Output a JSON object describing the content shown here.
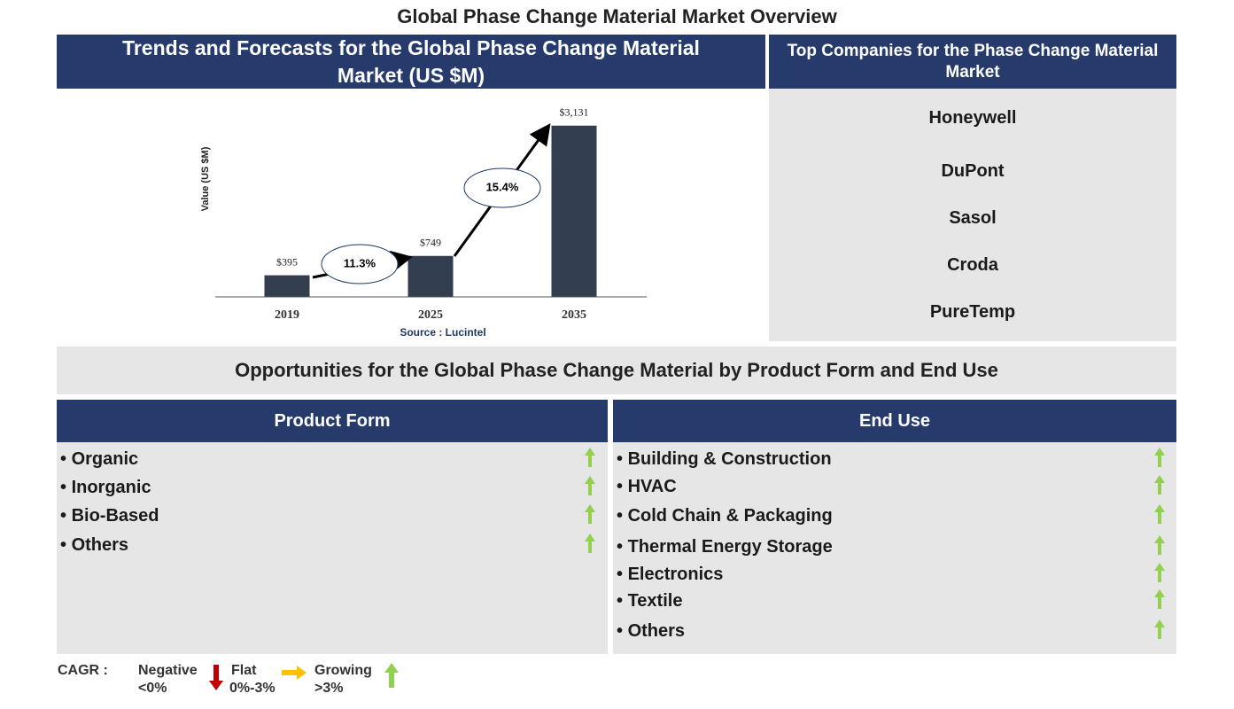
{
  "title": "Global Phase Change Material Market Overview",
  "chart_panel": {
    "title": "Trends and Forecasts for the Global Phase Change Material Market (US $M)",
    "source": "Source : Lucintel"
  },
  "chart_data": {
    "type": "bar",
    "y_label": "Value (US $M)",
    "categories": [
      "2019",
      "2025",
      "2035"
    ],
    "values": [
      395,
      749,
      3131
    ],
    "value_labels": [
      "$395",
      "$749",
      "$3,131"
    ],
    "color": "#323d4f",
    "ylim": [
      0,
      3500
    ],
    "cagr_labels": [
      "11.3%",
      "15.4%"
    ]
  },
  "companies": {
    "title": "Top Companies for the Phase Change Material Market",
    "items": [
      "Honeywell",
      "DuPont",
      "Sasol",
      "Croda",
      "PureTemp"
    ]
  },
  "opportunities": {
    "title": "Opportunities for the Global Phase Change Material by Product Form and End Use",
    "product_form": {
      "title": "Product Form",
      "items": [
        "Organic",
        "Inorganic",
        "Bio-Based",
        "Others"
      ]
    },
    "end_use": {
      "title": "End Use",
      "items": [
        "Building & Construction",
        "HVAC",
        "Cold Chain & Packaging",
        "Thermal Energy Storage",
        "Electronics",
        "Textile",
        "Others"
      ]
    }
  },
  "legend": {
    "label": "CAGR :",
    "negative": "Negative",
    "negative_range": "<0%",
    "flat": "Flat",
    "flat_range": "0%-3%",
    "growing": "Growing",
    "growing_range": ">3%"
  }
}
